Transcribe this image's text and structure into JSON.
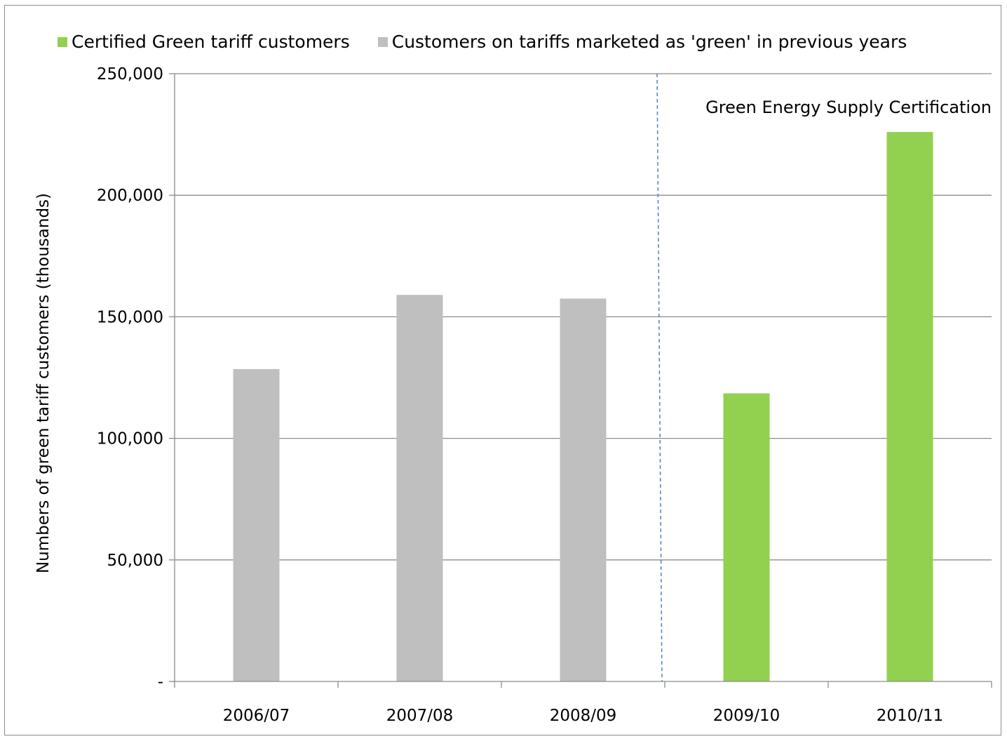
{
  "chart_data": {
    "type": "bar",
    "title": "",
    "xlabel": "",
    "ylabel": "Numbers of green tariff customers (thousands)",
    "ylim": [
      0,
      250000
    ],
    "yticks": [
      0,
      50000,
      100000,
      150000,
      200000,
      250000
    ],
    "ytick_labels": [
      "-",
      "50,000",
      "100,000",
      "150,000",
      "200,000",
      "250,000"
    ],
    "grid": true,
    "legend_position": "top",
    "categories": [
      "2006/07",
      "2007/08",
      "2008/09",
      "2009/10",
      "2010/11"
    ],
    "series": [
      {
        "name": "Certified Green tariff customers",
        "color": "#92d050",
        "values": [
          null,
          null,
          null,
          118500,
          226000
        ]
      },
      {
        "name": "Customers on tariffs marketed as 'green' in previous years",
        "color": "#bfbfbf",
        "values": [
          128500,
          159000,
          157500,
          null,
          null
        ]
      }
    ],
    "annotation": {
      "text": "Green Energy Supply Certification",
      "divider_between": [
        "2008/09",
        "2009/10"
      ],
      "divider_color": "#4f81bd"
    }
  }
}
